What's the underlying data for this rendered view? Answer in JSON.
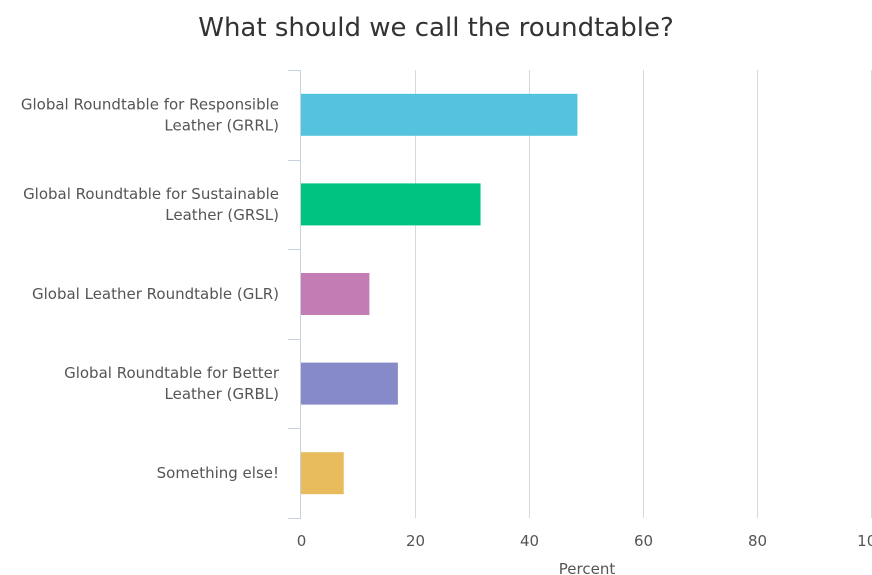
{
  "chart_data": {
    "type": "bar",
    "orientation": "horizontal",
    "title": "What should we call the roundtable?",
    "xlabel": "Percent",
    "ylabel": "",
    "xlim": [
      0,
      100
    ],
    "x_ticks": [
      "0",
      "20",
      "40",
      "60",
      "80",
      "100"
    ],
    "grid": true,
    "categories": [
      [
        "Global Roundtable for Responsible",
        "Leather (GRRL)"
      ],
      [
        "Global Roundtable for Sustainable",
        "Leather (GRSL)"
      ],
      [
        "Global Leather Roundtable (GLR)"
      ],
      [
        "Global Roundtable for Better",
        "Leather (GRBL)"
      ],
      [
        "Something else!"
      ]
    ],
    "values": [
      48.5,
      31.5,
      12.0,
      17.0,
      7.5
    ],
    "colors": [
      "#54c4de",
      "#00c281",
      "#c47cb4",
      "#878ac8",
      "#e8bc5c"
    ]
  }
}
